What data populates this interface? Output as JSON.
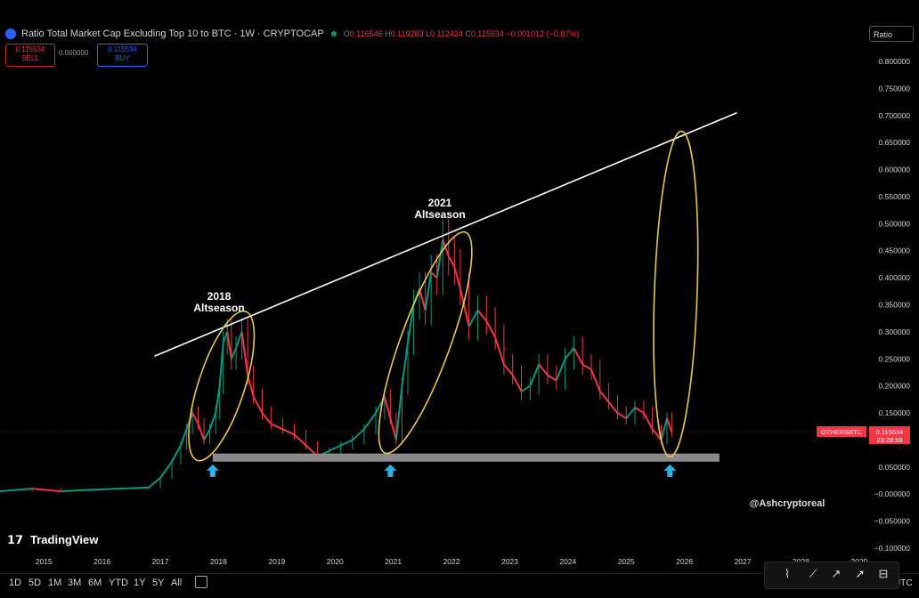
{
  "header": {
    "title": "Ratio Total Market Cap Excluding Top 10 to BTC · 1W · CRYPTOCAP",
    "ohlc": [
      {
        "label": "O",
        "value": "0.116546"
      },
      {
        "label": "H",
        "value": "0.119283"
      },
      {
        "label": "L",
        "value": "0.112424"
      },
      {
        "label": "C",
        "value": "0.115534"
      }
    ],
    "change": "−0.001012 (−0.87%)",
    "sell_price": "0.115534",
    "sell_label": "SELL",
    "buy_price": "0.115534",
    "buy_label": "BUY",
    "spread": "0.000000",
    "scale_mode": "Ratio"
  },
  "price_tag": {
    "symbol": "OTHERSBTC",
    "value": "0.115534",
    "countdown": "23:28:59"
  },
  "watermark": "@Ashcryptoreal",
  "branding": "TradingView",
  "timeframes": [
    "1D",
    "5D",
    "1M",
    "3M",
    "6M",
    "YTD",
    "1Y",
    "5Y",
    "All"
  ],
  "utc_label": "UTC",
  "annotations": {
    "season_2018_year": "2018",
    "season_2018_label": "Altseason",
    "season_2021_year": "2021",
    "season_2021_label": "Altseason"
  },
  "colors": {
    "up": "#089981",
    "down": "#f23645",
    "trendline": "#ffffff",
    "ellipse": "#e8c852",
    "arrow": "#2bb3e6",
    "support": "#8a8a8a"
  },
  "chart_data": {
    "type": "line",
    "title": "Ratio Total Market Cap Excluding Top 10 to BTC",
    "ylim": [
      -0.1,
      0.8
    ],
    "yticks": [
      "0.800000",
      "0.750000",
      "0.700000",
      "0.650000",
      "0.600000",
      "0.550000",
      "0.500000",
      "0.450000",
      "0.400000",
      "0.350000",
      "0.300000",
      "0.250000",
      "0.200000",
      "0.150000",
      "0.100000",
      "0.050000",
      "−0.000000",
      "−0.050000",
      "−0.100000"
    ],
    "xticks": [
      "2015",
      "2016",
      "2017",
      "2018",
      "2019",
      "2020",
      "2021",
      "2022",
      "2023",
      "2024",
      "2025",
      "2026",
      "2027",
      "2028",
      "2029"
    ],
    "series": [
      {
        "x": [
          2014.2,
          2014.8,
          2015.3,
          2015.8,
          2016.3,
          2016.8,
          2017.0,
          2017.2,
          2017.35,
          2017.45,
          2017.55,
          2017.65,
          2017.75,
          2017.85,
          2017.95,
          2018.02,
          2018.08,
          2018.15,
          2018.22,
          2018.3,
          2018.4,
          2018.5,
          2018.6,
          2018.75,
          2018.9,
          2019.1,
          2019.3,
          2019.5,
          2019.7,
          2019.9,
          2020.1,
          2020.3,
          2020.5,
          2020.7,
          2020.85,
          2020.95,
          2021.05,
          2021.15,
          2021.25,
          2021.35,
          2021.45,
          2021.55,
          2021.65,
          2021.75,
          2021.85,
          2021.95,
          2022.05,
          2022.15,
          2022.3,
          2022.45,
          2022.6,
          2022.75,
          2022.9,
          2023.05,
          2023.2,
          2023.35,
          2023.5,
          2023.65,
          2023.8,
          2023.95,
          2024.1,
          2024.25,
          2024.4,
          2024.55,
          2024.7,
          2024.85,
          2025.0,
          2025.15,
          2025.3,
          2025.45,
          2025.6,
          2025.7,
          2025.78
        ],
        "values": [
          0.005,
          0.01,
          0.005,
          0.008,
          0.01,
          0.012,
          0.03,
          0.06,
          0.09,
          0.12,
          0.15,
          0.13,
          0.1,
          0.12,
          0.15,
          0.2,
          0.28,
          0.3,
          0.25,
          0.27,
          0.3,
          0.22,
          0.18,
          0.15,
          0.13,
          0.12,
          0.11,
          0.09,
          0.07,
          0.08,
          0.09,
          0.1,
          0.12,
          0.15,
          0.18,
          0.14,
          0.1,
          0.2,
          0.28,
          0.35,
          0.38,
          0.34,
          0.41,
          0.4,
          0.47,
          0.44,
          0.42,
          0.38,
          0.31,
          0.34,
          0.32,
          0.29,
          0.24,
          0.22,
          0.19,
          0.2,
          0.24,
          0.22,
          0.21,
          0.25,
          0.27,
          0.24,
          0.23,
          0.19,
          0.17,
          0.15,
          0.14,
          0.16,
          0.15,
          0.12,
          0.1,
          0.14,
          0.115
        ]
      }
    ],
    "trendline": {
      "from": [
        2016.9,
        0.255
      ],
      "to": [
        2026.9,
        0.705
      ]
    },
    "support_zone": {
      "x": [
        2017.9,
        2026.6
      ],
      "y": [
        0.06,
        0.075
      ]
    },
    "highlight_arrows_x": [
      2017.9,
      2020.95,
      2025.75
    ]
  }
}
